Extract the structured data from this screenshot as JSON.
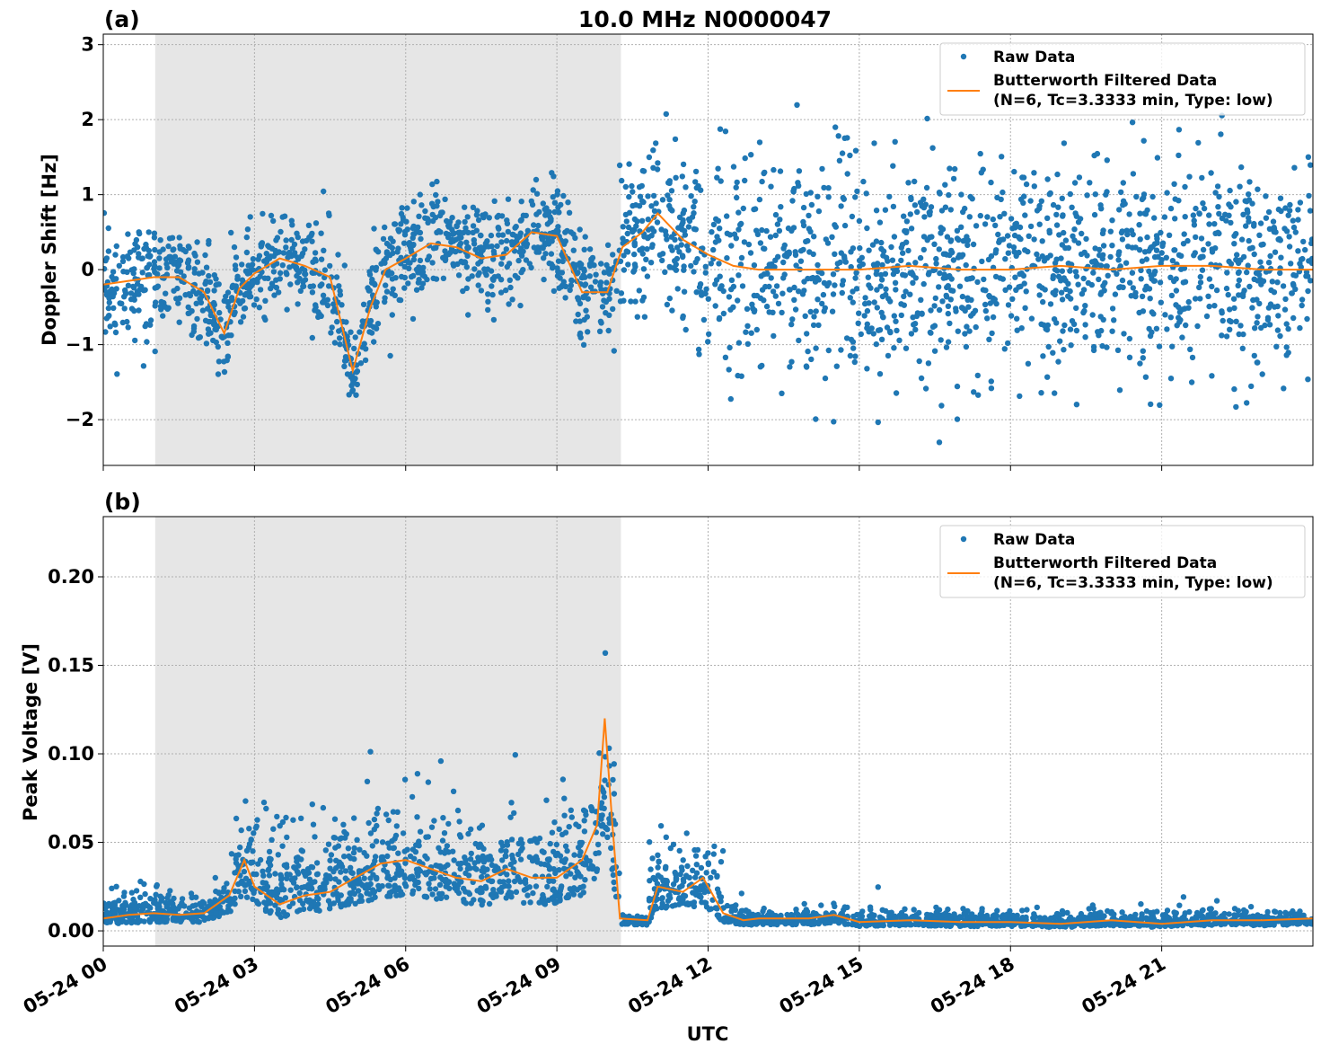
{
  "chart_data": [
    {
      "type": "scatter",
      "panel_label": "(a)",
      "title": "10.0 MHz N0000047",
      "xlabel": "",
      "ylabel": "Doppler Shift [Hz]",
      "xlim_hours": [
        0,
        24
      ],
      "ylim": [
        -2.61,
        3.14
      ],
      "yticks": [
        3,
        2,
        1,
        0,
        -1,
        -2
      ],
      "ytick_labels": [
        "3",
        "2",
        "1",
        "0",
        "−1",
        "−2"
      ],
      "grid": true,
      "shaded_interval_hours": [
        1.03,
        10.27
      ],
      "legend_position": "top-right",
      "legend": [
        "Raw Data",
        "Butterworth Filtered Data",
        "(N=6, Tc=3.3333 min, Type: low)"
      ],
      "colors": {
        "raw": "#1f77b4",
        "filtered": "#ff7f0e",
        "shade": "#e6e6e6"
      },
      "series": [
        {
          "name": "Butterworth Filtered Data",
          "x_hours": [
            0,
            0.5,
            1,
            1.5,
            2,
            2.4,
            2.7,
            3,
            3.5,
            4,
            4.5,
            4.95,
            5.3,
            5.6,
            6,
            6.5,
            7,
            7.5,
            8,
            8.5,
            9,
            9.5,
            10,
            10.3,
            10.7,
            11,
            11.5,
            12,
            12.5,
            13,
            14,
            15,
            16,
            17,
            18,
            19,
            20,
            21,
            22,
            23,
            24
          ],
          "y": [
            -0.2,
            -0.15,
            -0.1,
            -0.1,
            -0.3,
            -0.85,
            -0.25,
            -0.05,
            0.15,
            0.05,
            -0.1,
            -1.35,
            -0.5,
            0.0,
            0.15,
            0.35,
            0.3,
            0.15,
            0.2,
            0.5,
            0.45,
            -0.3,
            -0.3,
            0.3,
            0.5,
            0.75,
            0.4,
            0.2,
            0.05,
            0.0,
            0.0,
            0.0,
            0.05,
            0.0,
            0.0,
            0.05,
            0.0,
            0.05,
            0.05,
            0.0,
            0.0
          ]
        },
        {
          "name": "Raw Data",
          "spread_hz_by_interval": [
            {
              "from_hours": 0,
              "to_hours": 10.2,
              "spread": 0.35
            },
            {
              "from_hours": 10.2,
              "to_hours": 12,
              "spread": 0.55
            },
            {
              "from_hours": 12,
              "to_hours": 24,
              "spread": 0.7
            }
          ]
        }
      ]
    },
    {
      "type": "scatter",
      "panel_label": "(b)",
      "xlabel": "UTC",
      "ylabel": "Peak Voltage [V]",
      "xlim_hours": [
        0,
        24
      ],
      "ylim": [
        -0.0086,
        0.234
      ],
      "yticks": [
        0.0,
        0.05,
        0.1,
        0.15,
        0.2
      ],
      "ytick_labels": [
        "0.00",
        "0.05",
        "0.10",
        "0.15",
        "0.20"
      ],
      "xticks_hours": [
        0,
        3,
        6,
        9,
        12,
        15,
        18,
        21
      ],
      "xtick_labels": [
        "05-24 00",
        "05-24 03",
        "05-24 06",
        "05-24 09",
        "05-24 12",
        "05-24 15",
        "05-24 18",
        "05-24 21"
      ],
      "grid": true,
      "shaded_interval_hours": [
        1.03,
        10.27
      ],
      "legend_position": "top-right",
      "legend": [
        "Raw Data",
        "Butterworth Filtered Data",
        "(N=6, Tc=3.3333 min, Type: low)"
      ],
      "colors": {
        "raw": "#1f77b4",
        "filtered": "#ff7f0e",
        "shade": "#e6e6e6"
      },
      "series": [
        {
          "name": "Butterworth Filtered Data",
          "x_hours": [
            0,
            0.5,
            1,
            1.5,
            2,
            2.5,
            2.8,
            3,
            3.5,
            4,
            4.5,
            5,
            5.5,
            6,
            6.5,
            7,
            7.5,
            8,
            8.5,
            9,
            9.5,
            9.8,
            9.95,
            10.1,
            10.25,
            10.8,
            11,
            11.5,
            11.9,
            12.3,
            12.7,
            13,
            14,
            14.5,
            15,
            16,
            17,
            18,
            19,
            20,
            21,
            22,
            23,
            24
          ],
          "y": [
            0.007,
            0.009,
            0.01,
            0.009,
            0.01,
            0.02,
            0.04,
            0.025,
            0.015,
            0.02,
            0.022,
            0.03,
            0.038,
            0.04,
            0.035,
            0.03,
            0.028,
            0.035,
            0.03,
            0.03,
            0.04,
            0.06,
            0.12,
            0.06,
            0.007,
            0.006,
            0.025,
            0.022,
            0.03,
            0.01,
            0.006,
            0.007,
            0.007,
            0.009,
            0.005,
            0.006,
            0.005,
            0.005,
            0.004,
            0.006,
            0.004,
            0.006,
            0.006,
            0.007
          ]
        },
        {
          "name": "Raw Data",
          "spread_v_by_interval": [
            {
              "from_hours": 0,
              "to_hours": 2.5,
              "spread": 0.006
            },
            {
              "from_hours": 2.5,
              "to_hours": 10.25,
              "spread": 0.018
            },
            {
              "from_hours": 10.25,
              "to_hours": 10.8,
              "spread": 0.002
            },
            {
              "from_hours": 10.8,
              "to_hours": 12.3,
              "spread": 0.012
            },
            {
              "from_hours": 12.3,
              "to_hours": 24,
              "spread": 0.003
            }
          ]
        }
      ]
    }
  ]
}
